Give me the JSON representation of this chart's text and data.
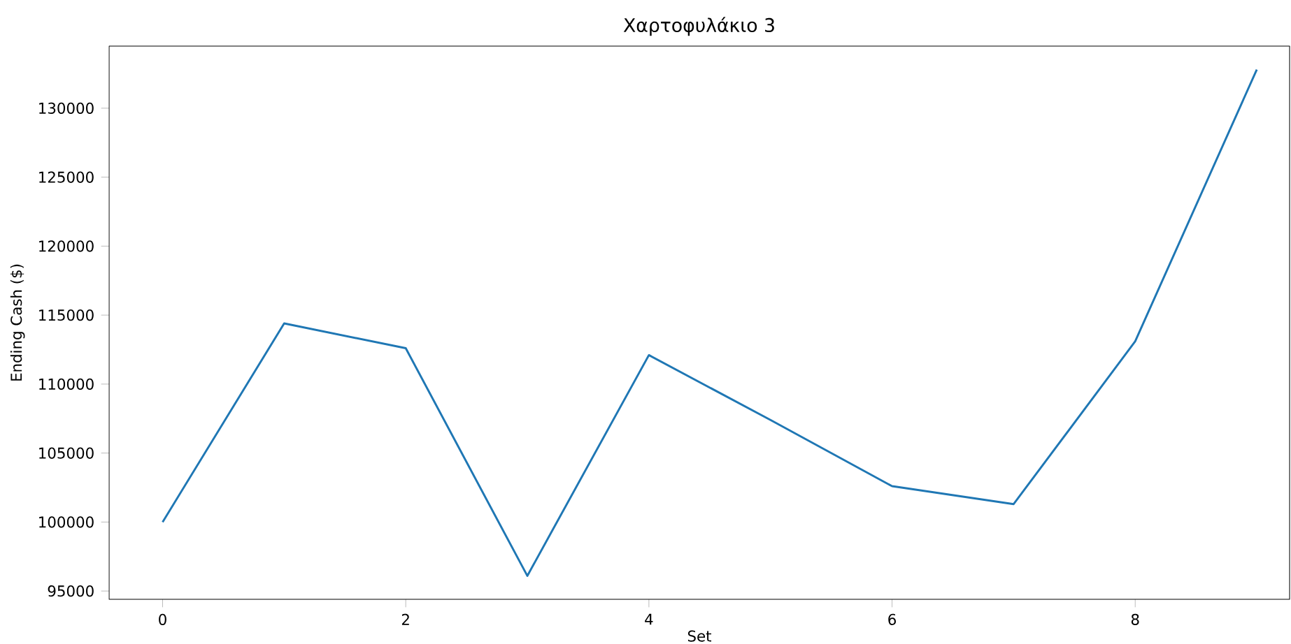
{
  "chart_data": {
    "type": "line",
    "title": "Χαρτοφυλάκιο 3",
    "xlabel": "Set",
    "ylabel": "Ending Cash ($)",
    "x": [
      0,
      1,
      2,
      3,
      4,
      5,
      6,
      7,
      8,
      9
    ],
    "values": [
      100000,
      114400,
      112600,
      96100,
      112100,
      107400,
      102600,
      101300,
      113100,
      132800
    ],
    "color": "#1f77b4",
    "xlim": [
      -0.44,
      9.27
    ],
    "ylim": [
      94400,
      134500
    ],
    "xticks": [
      0,
      2,
      4,
      6,
      8
    ],
    "yticks": [
      95000,
      100000,
      105000,
      110000,
      115000,
      120000,
      125000,
      130000
    ],
    "grid": false,
    "marker": "none",
    "line_style": "solid"
  }
}
